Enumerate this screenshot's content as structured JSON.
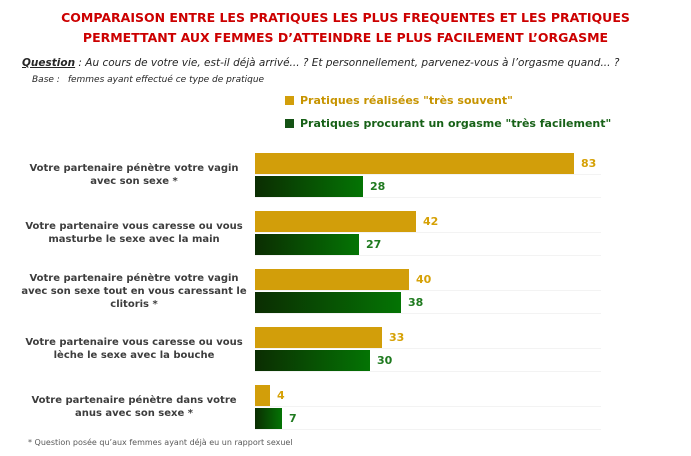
{
  "title": {
    "line1": "COMPARAISON ENTRE LES PRATIQUES LES PLUS FREQUENTES ET LES PRATIQUES",
    "line2": "PERMETTANT AUX FEMMES D’ATTEINDRE LE PLUS FACILEMENT L’ORGASME",
    "color": "#CC0000"
  },
  "question": {
    "label": "Question",
    "text": " : Au cours de votre vie, est-il déjà arrivé... ? Et personnellement, parvenez-vous à l’orgasme quand... ?"
  },
  "base": {
    "label": "Base :",
    "text": "femmes ayant effectué ce type de pratique"
  },
  "legend": [
    {
      "label": "Pratiques réalisées \"très souvent\"",
      "color": "#D29E0A"
    },
    {
      "label": "Pratiques procurant un orgasme \"très facilement\"",
      "color": "#145214"
    }
  ],
  "footnote": "* Question posée qu’aux femmes ayant déjà eu un rapport sexuel",
  "chart_data": {
    "type": "bar",
    "orientation": "horizontal",
    "categories": [
      "Votre partenaire pénètre votre vagin avec son sexe *",
      "Votre partenaire vous caresse ou vous masturbe le sexe avec la main",
      "Votre partenaire pénètre votre vagin avec son sexe tout en vous caressant le clitoris *",
      "Votre partenaire vous caresse ou vous lèche le sexe avec la bouche",
      "Votre partenaire pénètre dans votre anus avec son sexe *"
    ],
    "series": [
      {
        "name": "Pratiques réalisées \"très souvent\"",
        "values": [
          83,
          42,
          40,
          33,
          4
        ],
        "color": "#D29E0A"
      },
      {
        "name": "Pratiques procurant un orgasme \"très facilement\"",
        "values": [
          28,
          27,
          38,
          30,
          7
        ],
        "color_gradient": [
          "#0B2D02",
          "#047404"
        ]
      }
    ],
    "xlim": [
      0,
      90
    ],
    "value_labels": true,
    "legend_position": "top",
    "grid": "faint horizontal row separators"
  }
}
